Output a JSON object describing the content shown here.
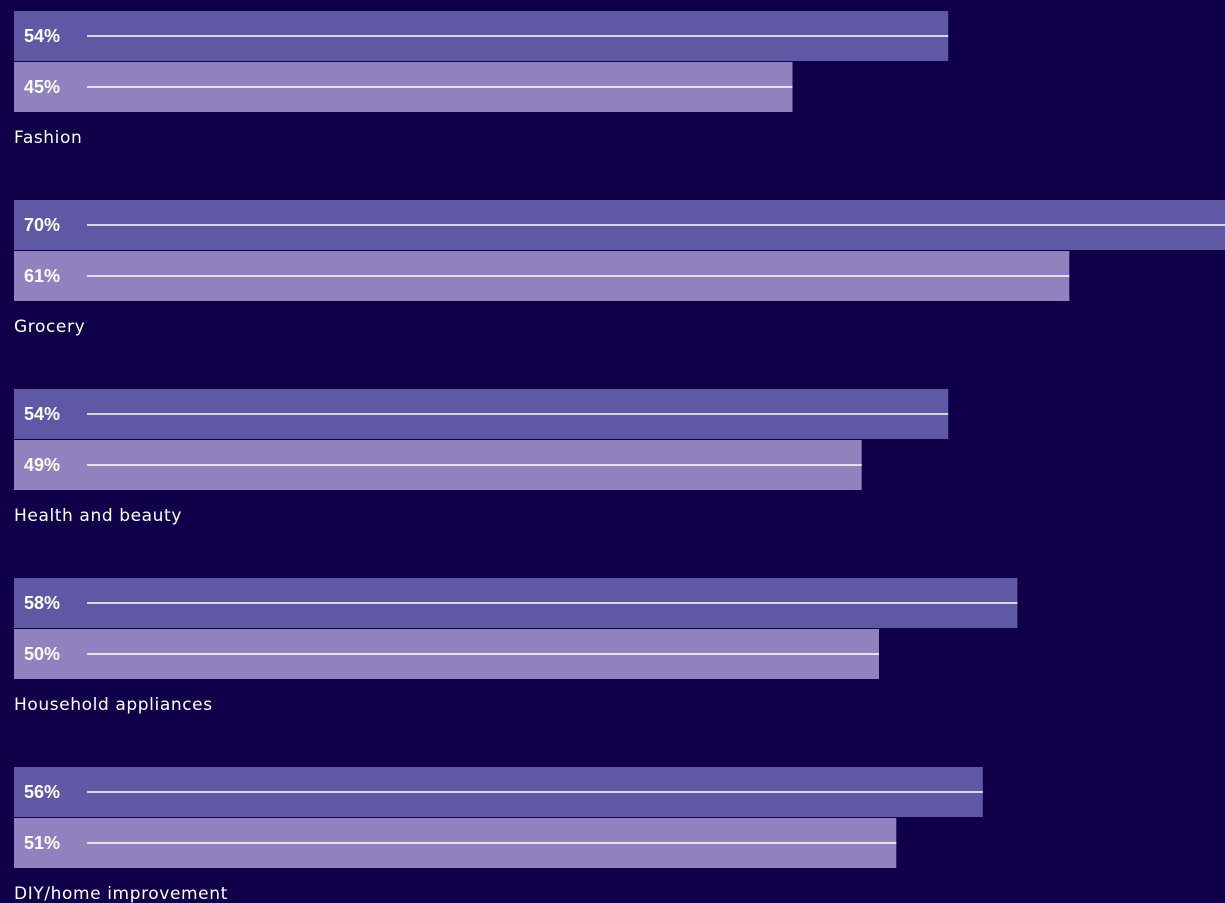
{
  "chart_data": {
    "type": "bar",
    "orientation": "horizontal",
    "categories": [
      "Fashion",
      "Grocery",
      "Health and beauty",
      "Household appliances",
      "DIY/home improvement"
    ],
    "series": [
      {
        "values": [
          54,
          70,
          54,
          58,
          56
        ],
        "labels": [
          "54%",
          "70%",
          "54%",
          "58%",
          "56%"
        ],
        "color": "#5f58a4"
      },
      {
        "values": [
          45,
          61,
          49,
          50,
          51
        ],
        "labels": [
          "45%",
          "61%",
          "49%",
          "50%",
          "51%"
        ],
        "color": "#8f82bf"
      }
    ],
    "unit": "%",
    "xlim": [
      0,
      70
    ],
    "grid": false,
    "legend": "none",
    "background": "#10004a",
    "label_color": "#ffffff",
    "line_color": "#ffffff"
  }
}
